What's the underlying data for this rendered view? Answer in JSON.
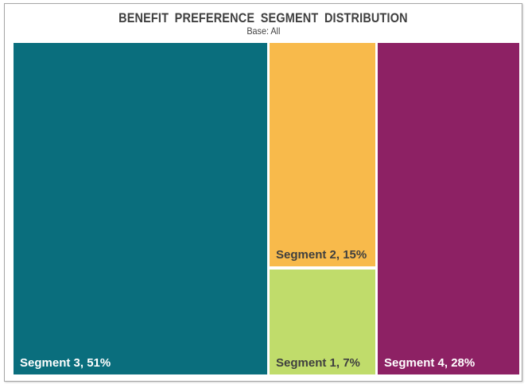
{
  "chart_data": {
    "type": "treemap",
    "title": "BENEFIT PREFERENCE SEGMENT DISTRIBUTION",
    "subtitle": "Base: All",
    "unit": "%",
    "legend": "none",
    "label_position": "inside-bottom-left",
    "gap_color": "#ffffff",
    "frame_border_color": "#a6a6a6",
    "title_color": "#3f3f3f",
    "segments": [
      {
        "name": "Segment 3",
        "value": 51,
        "label": "Segment 3, 51%",
        "color": "#0a6e7d",
        "text_color": "#ffffff",
        "position": "left"
      },
      {
        "name": "Segment 2",
        "value": 15,
        "label": "Segment 2, 15%",
        "color": "#f8ba4b",
        "text_color": "#3f3f3f",
        "position": "middle-top"
      },
      {
        "name": "Segment 1",
        "value": 7,
        "label": "Segment 1, 7%",
        "color": "#c0dc6b",
        "text_color": "#3f3f3f",
        "position": "middle-bottom"
      },
      {
        "name": "Segment 4",
        "value": 28,
        "label": "Segment 4, 28%",
        "color": "#8d2164",
        "text_color": "#ffffff",
        "position": "right"
      }
    ]
  }
}
